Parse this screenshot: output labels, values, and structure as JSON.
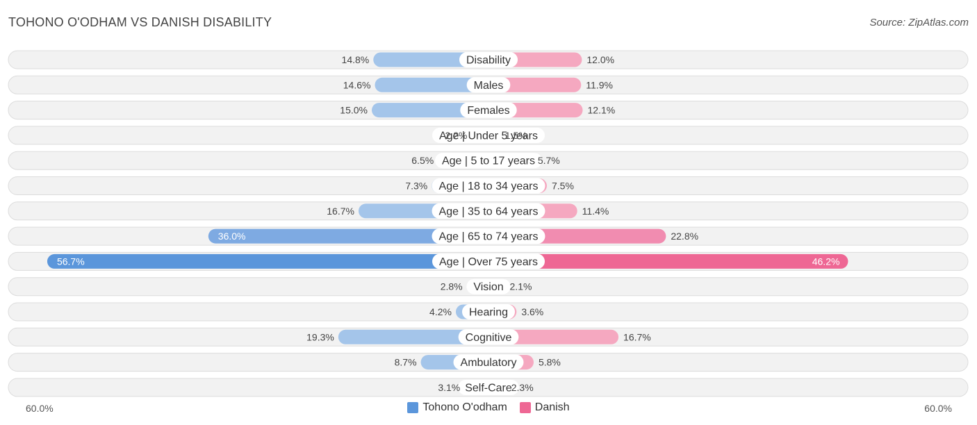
{
  "title": "TOHONO O'ODHAM VS DANISH DISABILITY",
  "source": "Source: ZipAtlas.com",
  "colors": {
    "left_light": "#a4c5ea",
    "left_strong": "#5b96db",
    "right_light": "#f5a8c0",
    "right_strong": "#ee6794"
  },
  "chart_data": {
    "type": "bar",
    "orientation": "horizontal-diverging",
    "title": "TOHONO O'ODHAM VS DANISH DISABILITY",
    "xlim": [
      -60,
      60
    ],
    "axis_left_label": "60.0%",
    "axis_right_label": "60.0%",
    "legend_position": "bottom-center",
    "categories": [
      "Disability",
      "Males",
      "Females",
      "Age | Under 5 years",
      "Age | 5 to 17 years",
      "Age | 18 to 34 years",
      "Age | 35 to 64 years",
      "Age | 65 to 74 years",
      "Age | Over 75 years",
      "Vision",
      "Hearing",
      "Cognitive",
      "Ambulatory",
      "Self-Care"
    ],
    "series": [
      {
        "name": "Tohono O'odham",
        "values": [
          14.8,
          14.6,
          15.0,
          2.2,
          6.5,
          7.3,
          16.7,
          36.0,
          56.7,
          2.8,
          4.2,
          19.3,
          8.7,
          3.1
        ],
        "labels": [
          "14.8%",
          "14.6%",
          "15.0%",
          "2.2%",
          "6.5%",
          "7.3%",
          "16.7%",
          "36.0%",
          "56.7%",
          "2.8%",
          "4.2%",
          "19.3%",
          "8.7%",
          "3.1%"
        ]
      },
      {
        "name": "Danish",
        "values": [
          12.0,
          11.9,
          12.1,
          1.5,
          5.7,
          7.5,
          11.4,
          22.8,
          46.2,
          2.1,
          3.6,
          16.7,
          5.8,
          2.3
        ],
        "labels": [
          "12.0%",
          "11.9%",
          "12.1%",
          "1.5%",
          "5.7%",
          "7.5%",
          "11.4%",
          "22.8%",
          "46.2%",
          "2.1%",
          "3.6%",
          "16.7%",
          "5.8%",
          "2.3%"
        ]
      }
    ]
  }
}
